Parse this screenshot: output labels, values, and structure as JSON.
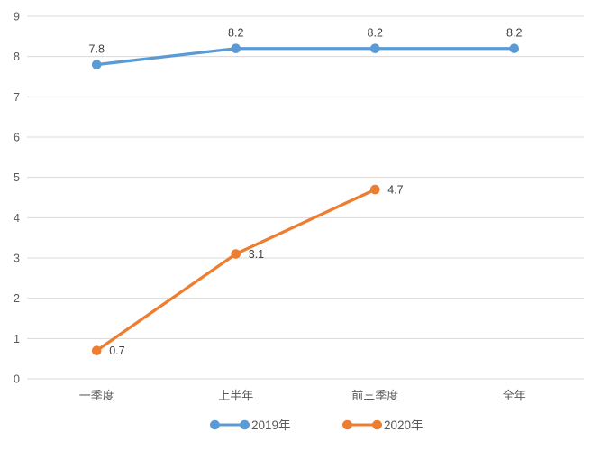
{
  "chart_data": {
    "type": "line",
    "title": "",
    "categories": [
      "一季度",
      "上半年",
      "前三季度",
      "全年"
    ],
    "series": [
      {
        "name": "2019年",
        "values": [
          7.8,
          8.2,
          8.2,
          8.2
        ],
        "data_labels": [
          "7.8",
          "8.2",
          "8.2",
          "8.2"
        ],
        "color": "#5B9BD5",
        "label_position": "above"
      },
      {
        "name": "2020年",
        "values": [
          0.7,
          3.1,
          4.7,
          null
        ],
        "data_labels": [
          "0.7",
          "3.1",
          "4.7",
          null
        ],
        "color": "#ED7D31",
        "label_position": "right"
      }
    ],
    "xlabel": "",
    "ylabel": "",
    "ylim": [
      0,
      9
    ],
    "y_ticks": [
      "0",
      "1",
      "2",
      "3",
      "4",
      "5",
      "6",
      "7",
      "8",
      "9"
    ],
    "grid": "horizontal",
    "legend_position": "bottom",
    "marker": "circle"
  },
  "colors": {
    "background": "#FFFFFF",
    "gridline": "#D9D9D9",
    "axis_text": "#595959",
    "data_label_text": "#404040",
    "legend_text": "#595959"
  }
}
